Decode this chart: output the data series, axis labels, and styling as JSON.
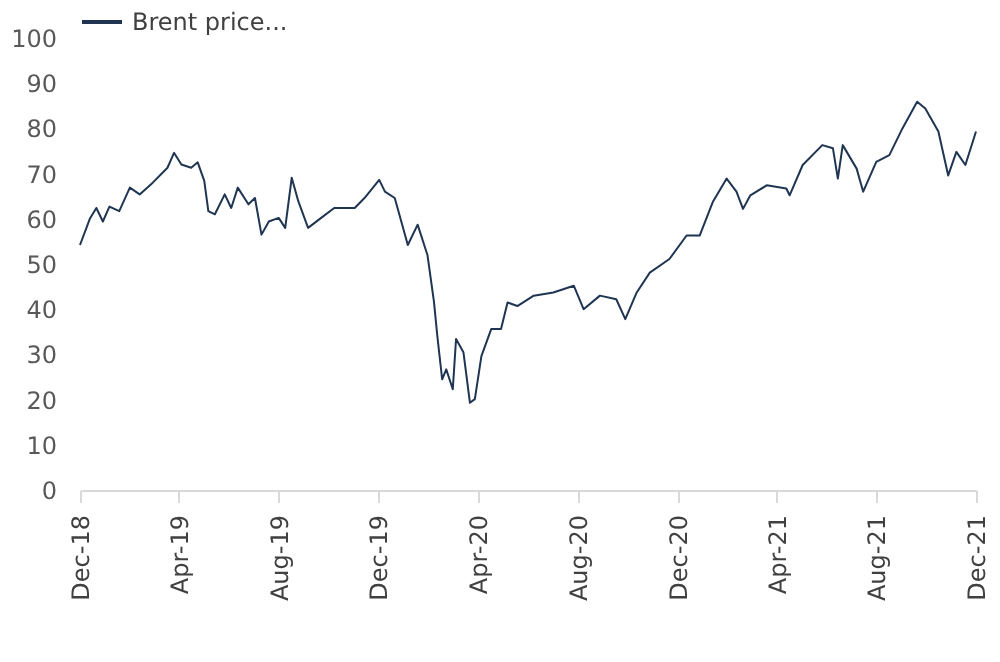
{
  "chart_data": {
    "type": "line",
    "x": [
      "2018-12-01",
      "2018-12-13",
      "2018-12-21",
      "2018-12-29",
      "2019-01-06",
      "2019-01-18",
      "2019-01-31",
      "2019-02-12",
      "2019-02-28",
      "2019-03-18",
      "2019-03-26",
      "2019-04-04",
      "2019-04-16",
      "2019-04-24",
      "2019-05-02",
      "2019-05-07",
      "2019-05-15",
      "2019-05-27",
      "2019-06-04",
      "2019-06-12",
      "2019-06-25",
      "2019-07-03",
      "2019-07-11",
      "2019-07-20",
      "2019-08-01",
      "2019-08-09",
      "2019-08-17",
      "2019-08-25",
      "2019-09-06",
      "2019-09-22",
      "2019-10-08",
      "2019-11-02",
      "2019-11-14",
      "2019-12-02",
      "2019-12-09",
      "2019-12-21",
      "2019-12-29",
      "2020-01-06",
      "2020-01-18",
      "2020-01-30",
      "2020-02-07",
      "2020-02-11",
      "2020-02-17",
      "2020-02-22",
      "2020-03-01",
      "2020-03-05",
      "2020-03-14",
      "2020-03-22",
      "2020-03-28",
      "2020-04-05",
      "2020-04-17",
      "2020-04-29",
      "2020-05-07",
      "2020-05-19",
      "2020-06-08",
      "2020-07-02",
      "2020-07-27",
      "2020-08-08",
      "2020-08-28",
      "2020-09-17",
      "2020-09-28",
      "2020-10-12",
      "2020-10-28",
      "2020-11-21",
      "2020-12-12",
      "2020-12-28",
      "2021-01-13",
      "2021-01-30",
      "2021-02-11",
      "2021-02-19",
      "2021-02-28",
      "2021-03-20",
      "2021-04-13",
      "2021-04-17",
      "2021-05-03",
      "2021-05-27",
      "2021-06-09",
      "2021-06-15",
      "2021-06-21",
      "2021-07-08",
      "2021-07-16",
      "2021-08-01",
      "2021-08-17",
      "2021-09-02",
      "2021-09-20",
      "2021-09-30",
      "2021-10-16",
      "2021-10-28",
      "2021-11-07",
      "2021-11-18",
      "2021-12-01"
    ],
    "series": [
      {
        "name": "Brent price...",
        "color": "#1f3552",
        "values": [
          54.2,
          60,
          62.4,
          59.4,
          62.7,
          61.7,
          66.9,
          65.4,
          68,
          71.3,
          74.6,
          72,
          71.3,
          72.5,
          68.4,
          61.7,
          61,
          65.4,
          62.4,
          66.9,
          63.2,
          64.6,
          56.5,
          59.4,
          60.2,
          58,
          69.1,
          63.9,
          58,
          60.2,
          62.4,
          62.4,
          64.6,
          68.6,
          66,
          64.6,
          59.4,
          54.2,
          58.7,
          52,
          41.6,
          34.2,
          24.5,
          26.7,
          22.3,
          33.4,
          30.5,
          19.3,
          20.1,
          29.6,
          35.6,
          35.6,
          41.5,
          40.7,
          43,
          43.7,
          45.2,
          40,
          43,
          42.2,
          37.8,
          43.7,
          48.1,
          51.1,
          56.3,
          56.3,
          63.7,
          68.9,
          66,
          62.2,
          65.2,
          67.4,
          66.7,
          65.2,
          71.9,
          76.3,
          75.6,
          68.9,
          76.3,
          71.1,
          66,
          72.6,
          74.1,
          80,
          85.9,
          84.4,
          79.3,
          69.6,
          74.8,
          71.9,
          79.3
        ]
      }
    ],
    "ylim": [
      0,
      100
    ],
    "yticks": [
      0,
      10,
      20,
      30,
      40,
      50,
      60,
      70,
      80,
      90,
      100
    ],
    "xlim": [
      "2018-12-01",
      "2021-12-01"
    ],
    "xticks": [
      {
        "value": "2018-12-01",
        "label": "Dec-18"
      },
      {
        "value": "2019-04-01",
        "label": "Apr-19"
      },
      {
        "value": "2019-08-01",
        "label": "Aug-19"
      },
      {
        "value": "2019-12-01",
        "label": "Dec-19"
      },
      {
        "value": "2020-04-01",
        "label": "Apr-20"
      },
      {
        "value": "2020-08-01",
        "label": "Aug-20"
      },
      {
        "value": "2020-12-01",
        "label": "Dec-20"
      },
      {
        "value": "2021-04-01",
        "label": "Apr-21"
      },
      {
        "value": "2021-08-01",
        "label": "Aug-21"
      },
      {
        "value": "2021-12-01",
        "label": "Dec-21"
      }
    ],
    "grid": false,
    "legend": "top",
    "marker": "none",
    "line_style": "solid"
  }
}
